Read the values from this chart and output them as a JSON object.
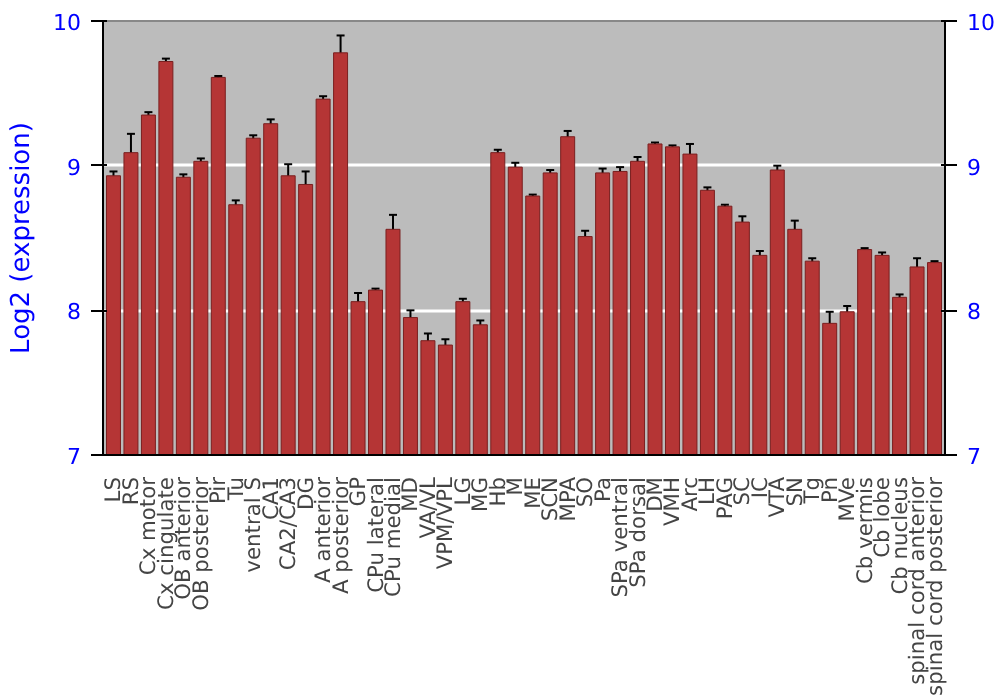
{
  "chart_data": {
    "type": "bar",
    "ylabel": "Log2 (expression)",
    "categories": [
      "LS",
      "RS",
      "Cx motor",
      "Cx cingulate",
      "OB anterior",
      "OB posterior",
      "Pir",
      "Tu",
      "ventral S",
      "CA1",
      "CA2/CA3",
      "DG",
      "A anterior",
      "A posterior",
      "GP",
      "CPu lateral",
      "CPu medial",
      "MD",
      "VA/VL",
      "VPM/VPL",
      "LG",
      "MG",
      "Hb",
      "M",
      "ME",
      "SCN",
      "MPA",
      "SO",
      "Pa",
      "SPa ventral",
      "SPa dorsal",
      "DM",
      "VMH",
      "Arc",
      "LH",
      "PAG",
      "SC",
      "IC",
      "VTA",
      "SN",
      "Tg",
      "Pn",
      "MVe",
      "Cb vermis",
      "Cb lobe",
      "Cb nucleus",
      "spinal cord anterior",
      "spinal cord posterior"
    ],
    "values": [
      8.93,
      9.09,
      9.35,
      9.72,
      8.92,
      9.03,
      9.61,
      8.73,
      9.19,
      9.29,
      8.93,
      8.87,
      9.46,
      9.78,
      8.06,
      8.14,
      8.56,
      7.95,
      7.79,
      7.76,
      8.06,
      7.9,
      9.09,
      8.99,
      8.79,
      8.95,
      9.2,
      8.51,
      8.95,
      8.96,
      9.03,
      9.15,
      9.13,
      9.08,
      8.83,
      8.72,
      8.61,
      8.38,
      8.97,
      8.56,
      8.34,
      7.91,
      7.99,
      8.42,
      8.38,
      8.09,
      8.3,
      8.33
    ],
    "errors": [
      0.03,
      0.13,
      0.02,
      0.02,
      0.02,
      0.02,
      0.01,
      0.03,
      0.02,
      0.03,
      0.08,
      0.09,
      0.02,
      0.12,
      0.06,
      0.01,
      0.1,
      0.05,
      0.05,
      0.04,
      0.02,
      0.03,
      0.02,
      0.03,
      0.01,
      0.02,
      0.04,
      0.04,
      0.03,
      0.03,
      0.03,
      0.01,
      0.01,
      0.07,
      0.02,
      0.01,
      0.04,
      0.03,
      0.03,
      0.06,
      0.02,
      0.08,
      0.04,
      0.01,
      0.02,
      0.02,
      0.06,
      0.01
    ],
    "color": "#b53535",
    "ylim": [
      7,
      10
    ],
    "yticks": [
      7,
      8,
      9,
      10
    ],
    "y2lim": [
      7,
      10
    ],
    "y2ticks": [
      7,
      8,
      9,
      10
    ],
    "grid": "y"
  }
}
